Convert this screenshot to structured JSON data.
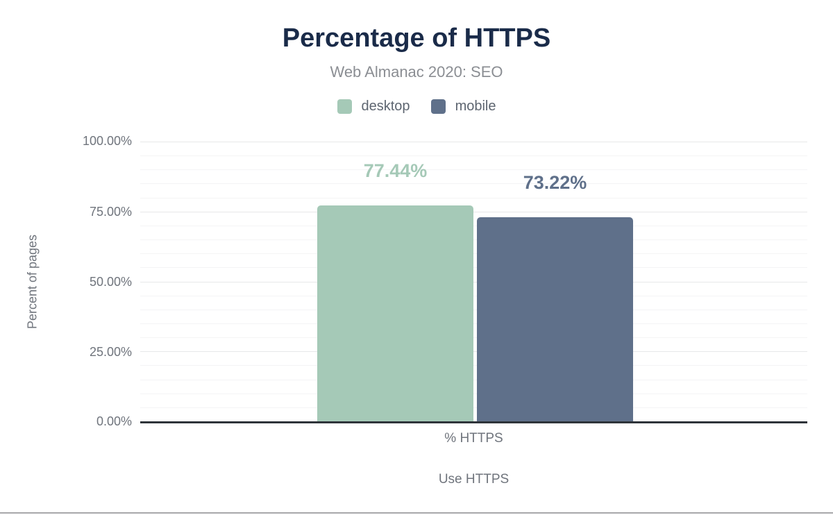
{
  "chart_data": {
    "type": "bar",
    "title": "Percentage of HTTPS",
    "subtitle": "Web Almanac 2020: SEO",
    "categories": [
      "% HTTPS"
    ],
    "series": [
      {
        "name": "desktop",
        "values": [
          77.44
        ],
        "data_label": "77.44%",
        "color": "#a5c9b7"
      },
      {
        "name": "mobile",
        "values": [
          73.22
        ],
        "data_label": "73.22%",
        "color": "#5f708a"
      }
    ],
    "xlabel": "Use HTTPS",
    "ylabel": "Percent of pages",
    "ylim": [
      0,
      100
    ],
    "ytick_step_major": 25,
    "ytick_step_minor": 5,
    "ytick_labels": [
      "0.00%",
      "25.00%",
      "50.00%",
      "75.00%",
      "100.00%"
    ],
    "grid": true,
    "legend_position": "top"
  }
}
